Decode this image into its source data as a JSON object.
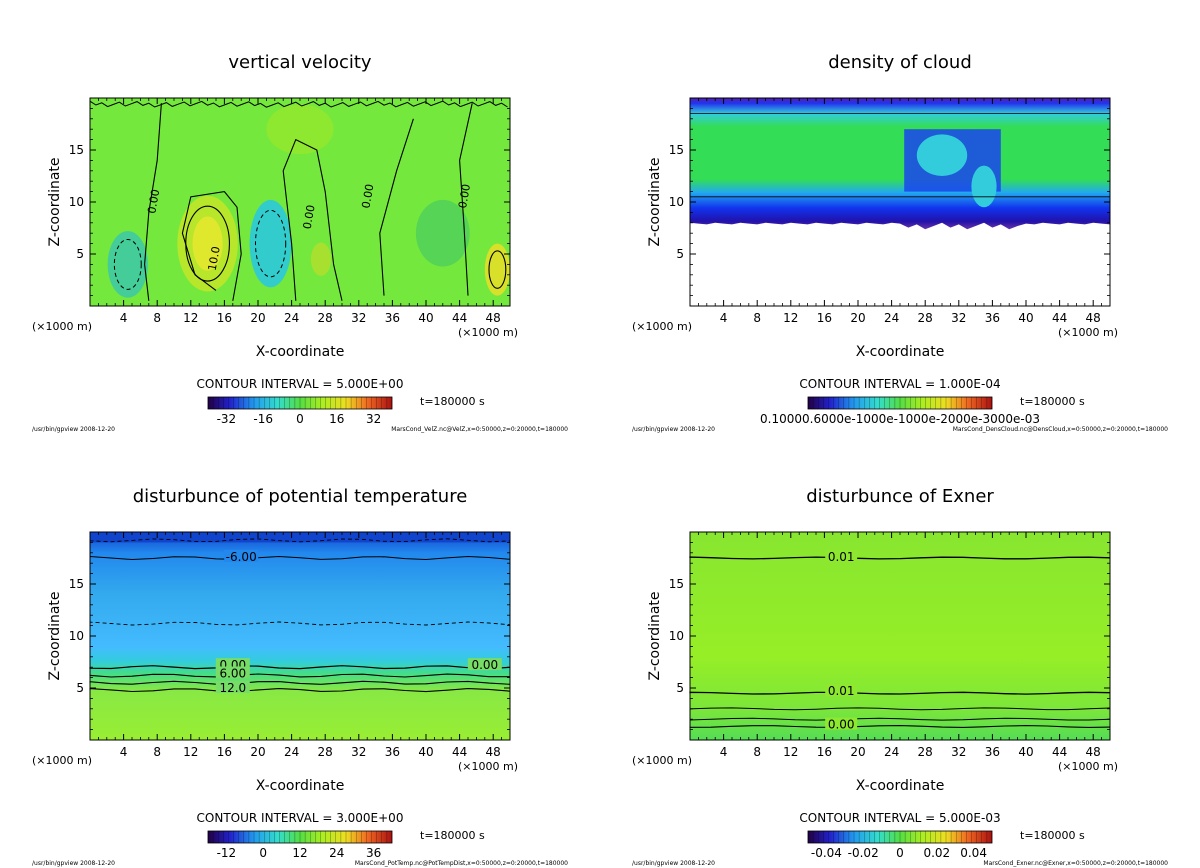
{
  "chart_data": [
    {
      "type": "heatmap",
      "title": "vertical velocity",
      "xlabel": "X-coordinate",
      "ylabel": "Z-coordinate",
      "x_unit": "(×1000 m)",
      "xlim": [
        0,
        50
      ],
      "ylim": [
        0,
        20
      ],
      "x_ticks": [
        "4",
        "8",
        "12",
        "16",
        "20",
        "24",
        "28",
        "32",
        "36",
        "40",
        "44",
        "48"
      ],
      "y_ticks": [
        "5",
        "10",
        "15"
      ],
      "contour_interval": "CONTOUR INTERVAL = 5.000E+00",
      "colorbar_ticks": [
        "-32",
        "-16",
        "0",
        "16",
        "32"
      ],
      "time": "t=180000 s",
      "footer_left": "/usr/bin/gpview 2008-12-20",
      "footer_right": "MarsCond_VelZ.nc@VelZ,x=0:50000,z=0:20000,t=180000",
      "contour_labels": [
        "0.00",
        "0.00",
        "0.00",
        "0.00",
        "10.0"
      ]
    },
    {
      "type": "heatmap",
      "title": "density of cloud",
      "xlabel": "X-coordinate",
      "ylabel": "Z-coordinate",
      "x_unit": "(×1000 m)",
      "xlim": [
        0,
        50
      ],
      "ylim": [
        0,
        20
      ],
      "x_ticks": [
        "4",
        "8",
        "12",
        "16",
        "20",
        "24",
        "28",
        "32",
        "36",
        "40",
        "44",
        "48"
      ],
      "y_ticks": [
        "5",
        "10",
        "15"
      ],
      "contour_interval": "CONTOUR INTERVAL = 1.000E-04",
      "colorbar_ticks": [
        "0.10000.6000e-1000e-1000e-2000e-3000e-03"
      ],
      "time": "t=180000 s",
      "footer_left": "/usr/bin/gpview 2008-12-20",
      "footer_right": "MarsCond_DensCloud.nc@DensCloud,x=0:50000,z=0:20000,t=180000",
      "contour_labels": []
    },
    {
      "type": "heatmap",
      "title": "disturbunce of potential temperature",
      "xlabel": "X-coordinate",
      "ylabel": "Z-coordinate",
      "x_unit": "(×1000 m)",
      "xlim": [
        0,
        50
      ],
      "ylim": [
        0,
        20
      ],
      "x_ticks": [
        "4",
        "8",
        "12",
        "16",
        "20",
        "24",
        "28",
        "32",
        "36",
        "40",
        "44",
        "48"
      ],
      "y_ticks": [
        "5",
        "10",
        "15"
      ],
      "contour_interval": "CONTOUR INTERVAL = 3.000E+00",
      "colorbar_ticks": [
        "-12",
        "0",
        "12",
        "24",
        "36"
      ],
      "time": "t=180000 s",
      "footer_left": "/usr/bin/gpview 2008-12-20",
      "footer_right": "MarsCond_PotTemp.nc@PotTempDist,x=0:50000,z=0:20000,t=180000",
      "contour_labels": [
        "-6.00",
        "0.00",
        "0.00",
        "6.00",
        "12.0"
      ]
    },
    {
      "type": "heatmap",
      "title": "disturbunce of Exner",
      "xlabel": "X-coordinate",
      "ylabel": "Z-coordinate",
      "x_unit": "(×1000 m)",
      "xlim": [
        0,
        50
      ],
      "ylim": [
        0,
        20
      ],
      "x_ticks": [
        "4",
        "8",
        "12",
        "16",
        "20",
        "24",
        "28",
        "32",
        "36",
        "40",
        "44",
        "48"
      ],
      "y_ticks": [
        "5",
        "10",
        "15"
      ],
      "contour_interval": "CONTOUR INTERVAL = 5.000E-03",
      "colorbar_ticks": [
        "-0.04",
        "-0.02",
        "0",
        "0.02",
        "0.04"
      ],
      "time": "t=180000 s",
      "footer_left": "/usr/bin/gpview 2008-12-20",
      "footer_right": "MarsCond_Exner.nc@Exner,x=0:50000,z=0:20000,t=180000",
      "contour_labels": [
        "0.01",
        "0.01",
        "0.00"
      ]
    }
  ],
  "colors": {
    "background": "#ffffff",
    "axis": "#000000",
    "field_green": "#74e83c",
    "field_yellow": "#c8ee2a",
    "field_cyan": "#33cccc",
    "cloud_green": "#33dd55",
    "cloud_blue": "#1133ee",
    "cloud_purple": "#6633aa",
    "pt_blue": "#2299ee",
    "pt_lightblue": "#55bbff",
    "pt_navy": "#1144cc",
    "exner_green": "#8ee82a"
  }
}
